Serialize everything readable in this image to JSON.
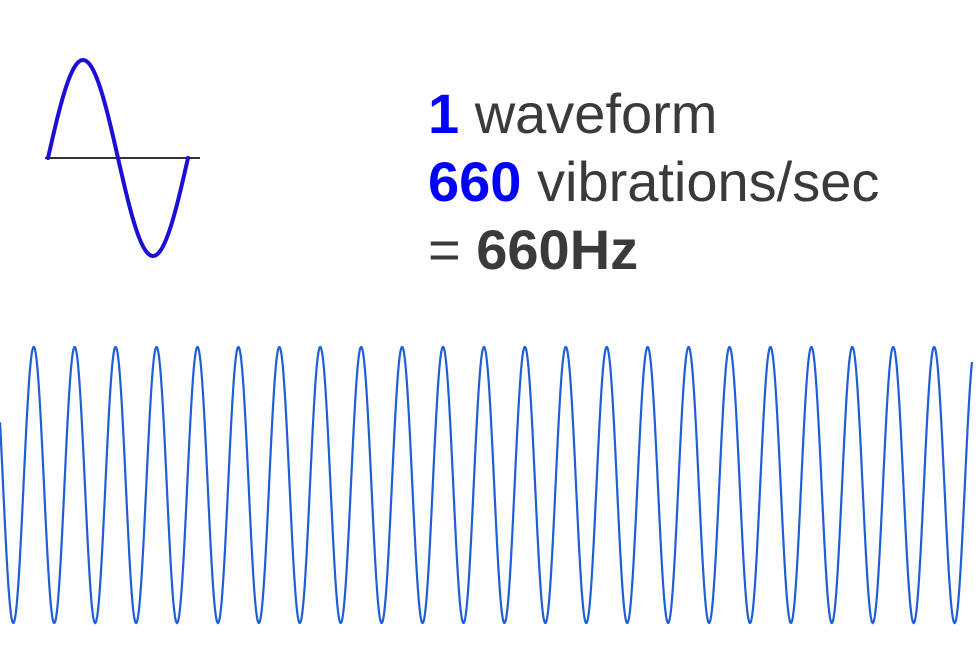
{
  "colors": {
    "wave_single": "#1a0fd6",
    "wave_strip": "#1f5fd6",
    "axis": "#333333",
    "accent": "#0000ff",
    "text": "#3a3a3a"
  },
  "caption": {
    "line1_number": "1",
    "line1_text": " waveform",
    "line2_number": "660",
    "line2_text": " vibrations/sec",
    "line3_prefix": "= ",
    "line3_value": "660Hz"
  },
  "single_wave": {
    "cycles": 1
  },
  "wave_strip": {
    "cycles": 24
  }
}
